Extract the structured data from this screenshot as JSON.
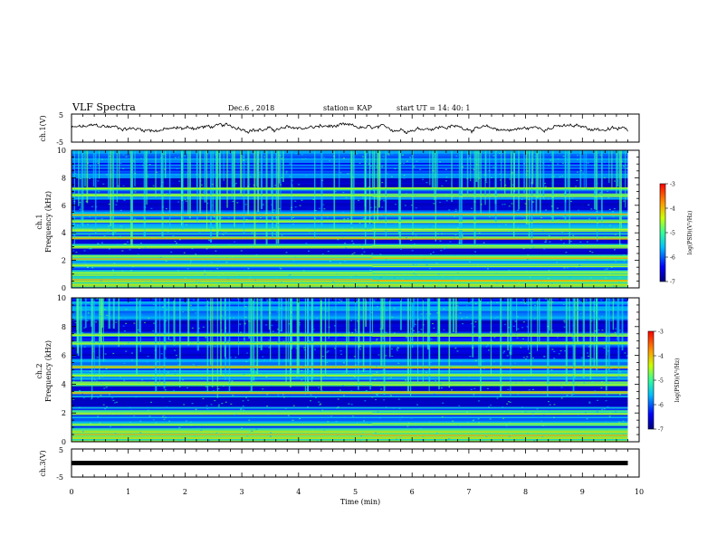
{
  "header": {
    "title": "VLF Spectra",
    "date": "Dec.6 , 2018",
    "station": "station= KAP",
    "start": "start UT = 14: 40: 1"
  },
  "chart_data": [
    {
      "type": "line",
      "ylabel": "ch.1(V)",
      "ylim": [
        -5,
        5
      ],
      "y_ticklabels": [
        "5",
        "-5"
      ],
      "xlim": [
        0,
        10
      ],
      "description": "noisy waveform near 0 V, roughly +/-1.5 V"
    },
    {
      "type": "heatmap",
      "ylabel": "ch.1\nFrequency (kHz)",
      "ylabel_lines": [
        "ch.1",
        "Frequency (kHz)"
      ],
      "ylim": [
        0,
        10
      ],
      "y_ticklabels": [
        "0",
        "2",
        "4",
        "6",
        "8",
        "10"
      ],
      "xlim": [
        0,
        9.8
      ],
      "colorbar": {
        "label": "log(PSD)(V²/Hz)",
        "ticks": [
          "-3",
          "-4",
          "-5",
          "-6",
          "-7"
        ],
        "range": [
          -7,
          -3
        ]
      },
      "bright_bands_khz": [
        0.6,
        1.1,
        1.6,
        2.1,
        2.3,
        3.0,
        3.6,
        4.2,
        4.8,
        5.3,
        6.7,
        7.2
      ],
      "dark_bands_khz": [
        2.6,
        3.3,
        6.0,
        7.6
      ],
      "line_break_min": 5.3
    },
    {
      "type": "heatmap",
      "ylabel": "ch.2\nFrequency (kHz)",
      "ylabel_lines": [
        "ch.2",
        "Frequency (kHz)"
      ],
      "ylim": [
        0,
        10
      ],
      "y_ticklabels": [
        "0",
        "2",
        "4",
        "6",
        "8",
        "10"
      ],
      "xlim": [
        0,
        9.8
      ],
      "colorbar": {
        "label": "log(PSD)(V²/Hz)",
        "ticks": [
          "-3",
          "-4",
          "-5",
          "-6",
          "-7"
        ],
        "range": [
          -7,
          -3
        ]
      },
      "bright_bands_khz": [
        0.5,
        1.2,
        2.0,
        3.4,
        4.0,
        4.6,
        5.2,
        6.8,
        7.4
      ],
      "dark_bands_khz": [
        2.7,
        3.7,
        6.1,
        8.0
      ],
      "line_break_min": 5.3
    },
    {
      "type": "line",
      "ylabel": "ch.3(V)",
      "ylim": [
        -5,
        5
      ],
      "y_ticklabels": [
        "5",
        "-5"
      ],
      "xlim": [
        0,
        10
      ],
      "x_ticklabels": [
        "0",
        "1",
        "2",
        "3",
        "4",
        "5",
        "6",
        "7",
        "8",
        "9",
        "10"
      ],
      "xlabel": "Time (min)",
      "constant_value": 0
    }
  ]
}
